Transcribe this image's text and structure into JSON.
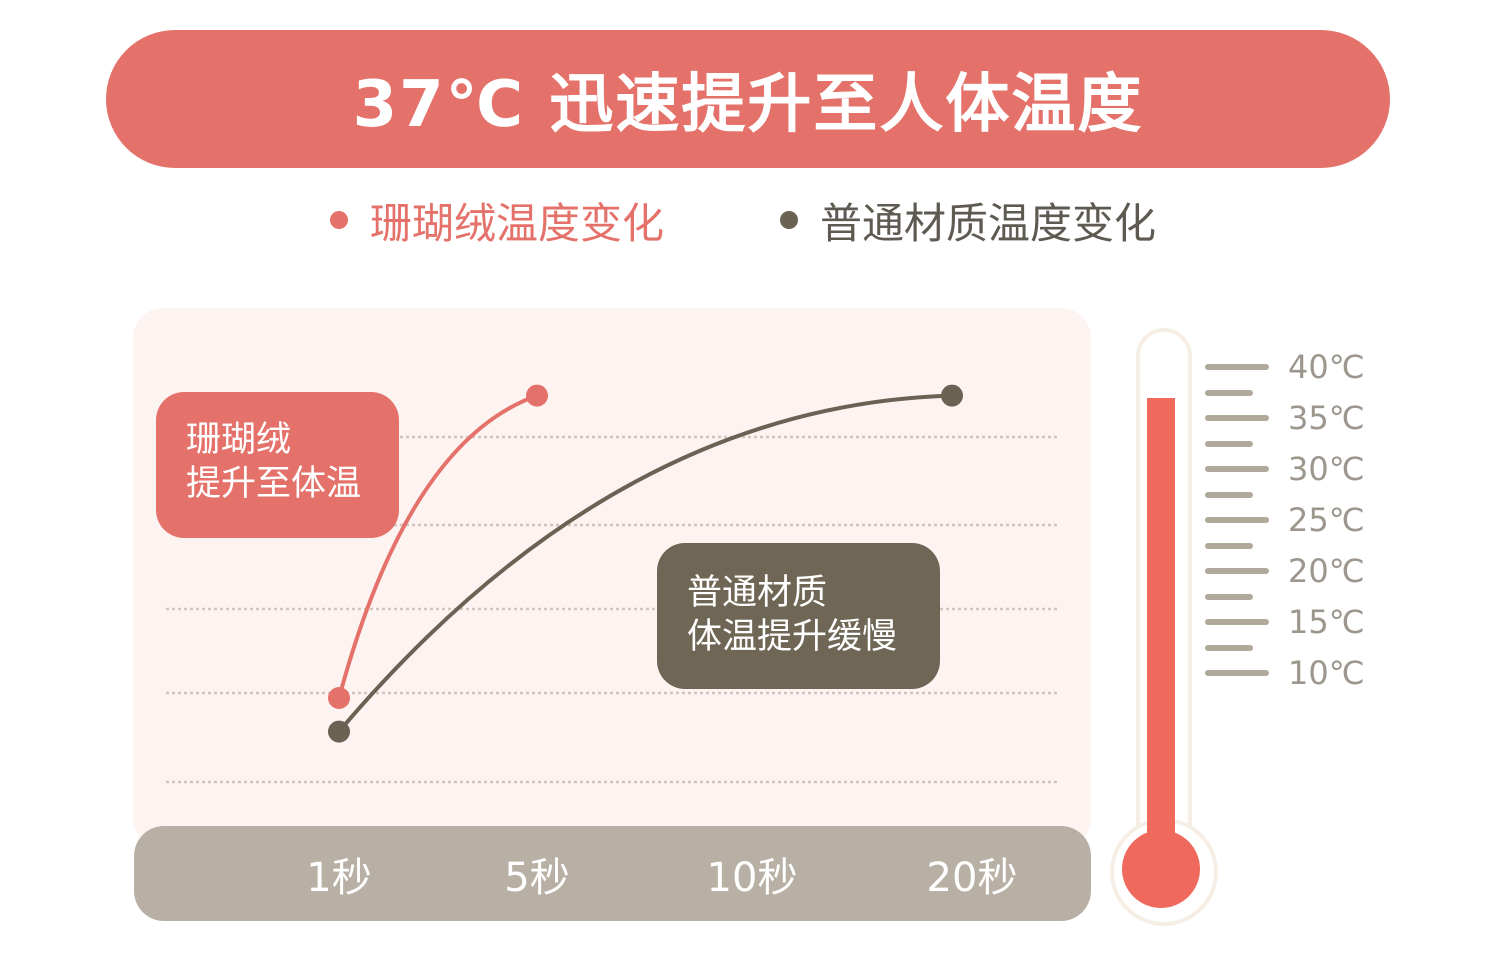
{
  "banner": {
    "title": "37℃ 迅速提升至人体温度"
  },
  "colors": {
    "accent": "#e5726a",
    "dark": "#6f6655",
    "xbar": "#b8b0a4",
    "mercury": "#ef6a5c"
  },
  "chart_data": {
    "type": "line",
    "categories": [
      "1秒",
      "5秒",
      "10秒",
      "20秒"
    ],
    "series": [
      {
        "name": "珊瑚绒温度变化",
        "color": "#e5726a",
        "points": [
          {
            "x": "1秒",
            "y": 0.2
          },
          {
            "x": "5秒",
            "y": 0.92
          }
        ]
      },
      {
        "name": "普通材质温度变化",
        "color": "#6a6253",
        "points": [
          {
            "x": "1秒",
            "y": 0.12
          },
          {
            "x": "20秒",
            "y": 0.92
          }
        ]
      }
    ],
    "grid": true,
    "legend_position": "top-center",
    "annotations": [
      {
        "lines": [
          "珊瑚绒",
          "提升至体温"
        ],
        "series": "珊瑚绒温度变化"
      },
      {
        "lines": [
          "普通材质",
          "体温提升缓慢"
        ],
        "series": "普通材质温度变化"
      }
    ]
  },
  "thermometer": {
    "scale_labels": [
      "40℃",
      "35℃",
      "30℃",
      "25℃",
      "20℃",
      "15℃",
      "10℃"
    ],
    "scale_values": [
      40,
      35,
      30,
      25,
      20,
      15,
      10
    ],
    "level_celsius": 37
  }
}
